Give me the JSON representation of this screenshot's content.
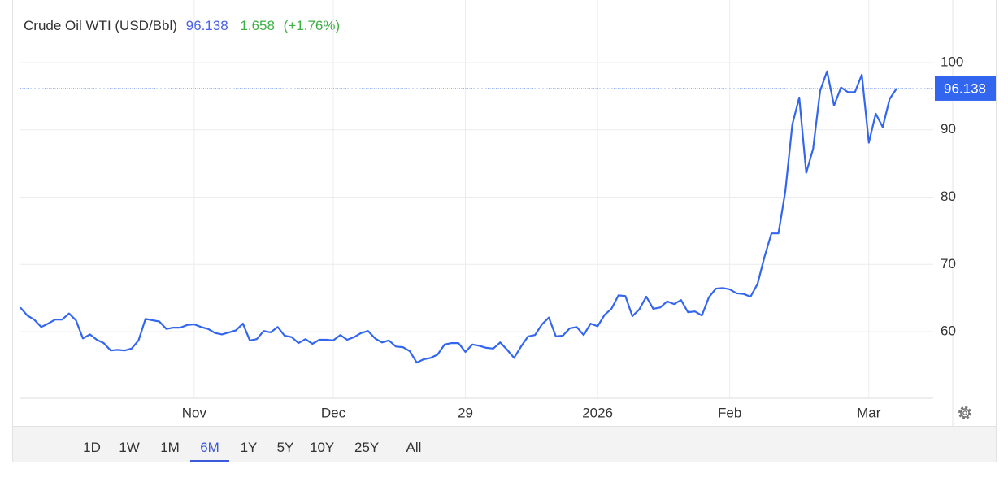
{
  "chart_data": {
    "type": "line",
    "title": "Crude Oil WTI (USD/Bbl)",
    "price": 96.138,
    "change": "1.658",
    "change_percent": "(+1.76%)",
    "color": "#3366ee",
    "categories": [
      null,
      null,
      null,
      null,
      null,
      null,
      null,
      null,
      null,
      null,
      null,
      null,
      null,
      null,
      null,
      null,
      null,
      null,
      null,
      null,
      null,
      null,
      null,
      null,
      null,
      "Nov",
      null,
      null,
      null,
      null,
      null,
      null,
      null,
      null,
      null,
      null,
      null,
      null,
      null,
      null,
      null,
      null,
      null,
      null,
      null,
      "Dec",
      null,
      null,
      null,
      null,
      null,
      null,
      null,
      null,
      null,
      null,
      null,
      null,
      null,
      null,
      null,
      null,
      null,
      null,
      "29",
      null,
      null,
      null,
      null,
      null,
      null,
      null,
      null,
      null,
      null,
      null,
      null,
      null,
      null,
      null,
      null,
      null,
      null,
      "2026",
      null,
      null,
      null,
      null,
      null,
      null,
      null,
      null,
      null,
      null,
      null,
      null,
      null,
      null,
      null,
      null,
      null,
      null,
      "Feb",
      null,
      null,
      null,
      null,
      null,
      null,
      null,
      null,
      null,
      null,
      null,
      null,
      null,
      null,
      null,
      null,
      null,
      null,
      null,
      "Mar",
      null,
      null,
      null,
      null
    ],
    "values": [
      63.6,
      62.4,
      61.8,
      60.7,
      61.2,
      61.8,
      61.8,
      62.7,
      61.7,
      59.0,
      59.6,
      58.8,
      58.3,
      57.2,
      57.3,
      57.2,
      57.5,
      58.7,
      61.9,
      61.7,
      61.5,
      60.4,
      60.6,
      60.6,
      61.0,
      61.1,
      60.7,
      60.4,
      59.8,
      59.6,
      59.9,
      60.2,
      61.2,
      58.7,
      58.9,
      60.1,
      59.9,
      60.7,
      59.4,
      59.2,
      58.3,
      58.9,
      58.2,
      58.8,
      58.8,
      58.7,
      59.5,
      58.8,
      59.2,
      59.8,
      60.1,
      59.0,
      58.4,
      58.7,
      57.8,
      57.7,
      57.1,
      55.4,
      55.9,
      56.1,
      56.6,
      58.1,
      58.3,
      58.3,
      57.0,
      58.1,
      57.9,
      57.6,
      57.5,
      58.4,
      57.3,
      56.1,
      57.8,
      59.3,
      59.5,
      61.1,
      62.1,
      59.3,
      59.4,
      60.5,
      60.7,
      59.5,
      61.2,
      60.8,
      62.5,
      63.4,
      65.4,
      65.3,
      62.3,
      63.3,
      65.2,
      63.4,
      63.6,
      64.5,
      64.1,
      64.7,
      62.9,
      63.0,
      62.4,
      65.1,
      66.4,
      66.5,
      66.3,
      65.7,
      65.6,
      65.2,
      67.1,
      71.1,
      74.6,
      74.6,
      80.9,
      90.8,
      94.8,
      83.6,
      87.2,
      95.8,
      98.7,
      93.6,
      96.3,
      95.6,
      95.6,
      98.2,
      88.1,
      92.4,
      90.4,
      94.6,
      96.138
    ],
    "ylim": [
      50.1,
      109.3
    ],
    "yticks": [
      60,
      70,
      80,
      90,
      100
    ],
    "grid": true
  },
  "toolbar": {
    "buttons": [
      "1D",
      "1W",
      "1M",
      "6M",
      "1Y",
      "5Y",
      "10Y",
      "25Y",
      "All"
    ],
    "active_index": 3
  }
}
